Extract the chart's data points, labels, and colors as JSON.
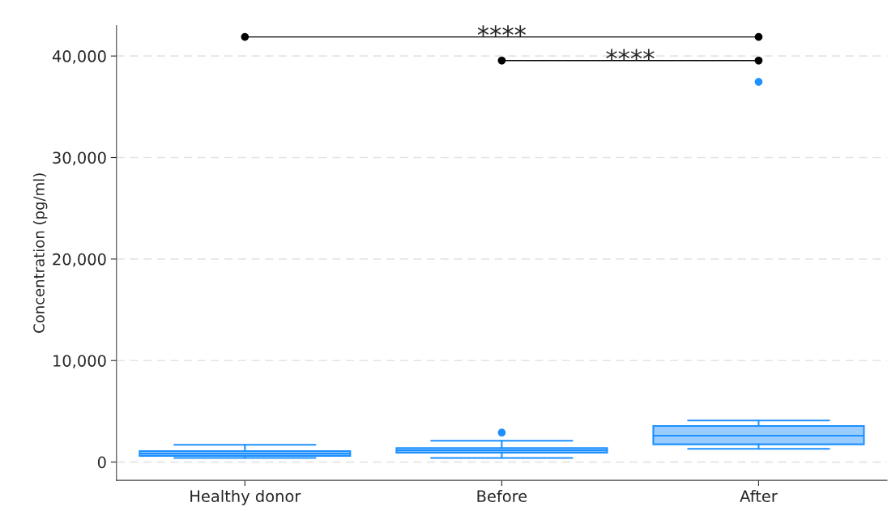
{
  "chart_data": {
    "type": "box",
    "ylabel": "Concentration (pg/ml)",
    "categories": [
      "Healthy donor",
      "Before",
      "After"
    ],
    "boxes": [
      {
        "low": 400,
        "q1": 615,
        "median": 850,
        "q3": 1080,
        "high": 1700
      },
      {
        "low": 400,
        "q1": 920,
        "median": 1150,
        "q3": 1380,
        "high": 2100,
        "outliers": [
          2900
        ]
      },
      {
        "low": 1300,
        "q1": 1750,
        "median": 2600,
        "q3": 3550,
        "high": 4100,
        "outliers": [
          37450
        ]
      }
    ],
    "color": "#1e90ff",
    "ylim": [
      -1800,
      43000
    ],
    "yticks": [
      {
        "value": 0,
        "label": "0"
      },
      {
        "value": 10000,
        "label": "10,000"
      },
      {
        "value": 20000,
        "label": "20,000"
      },
      {
        "value": 30000,
        "label": "30,000"
      },
      {
        "value": 40000,
        "label": "40,000"
      }
    ],
    "grid": "y",
    "annotations": [
      "****",
      "****"
    ]
  }
}
